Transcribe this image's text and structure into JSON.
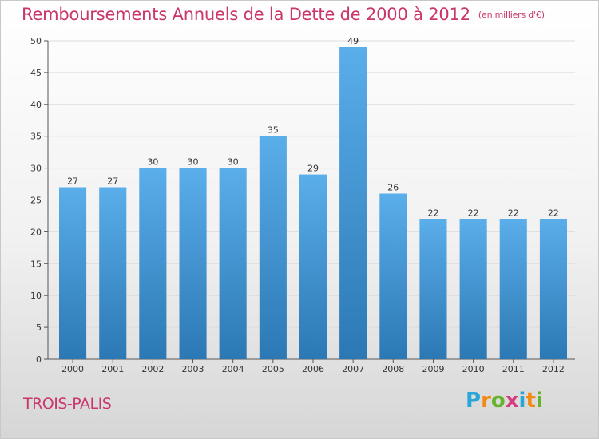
{
  "header": {
    "title": "Remboursements Annuels de la Dette de 2000 à 2012",
    "subtitle": "(en milliers d'€)"
  },
  "footer": {
    "location": "TROIS-PALIS",
    "logo": {
      "text": "Proxiti",
      "letters": [
        "P",
        "r",
        "o",
        "x",
        "i",
        "t",
        "i"
      ],
      "colors": [
        "#2aa6d6",
        "#f18b14",
        "#66b32e",
        "#d63d7e",
        "#2aa6d6",
        "#f18b14",
        "#66b32e"
      ]
    }
  },
  "chart_data": {
    "type": "bar",
    "title": "Remboursements Annuels de la Dette de 2000 à 2012",
    "subtitle": "(en milliers d'€)",
    "xlabel": "",
    "ylabel": "",
    "categories": [
      "2000",
      "2001",
      "2002",
      "2003",
      "2004",
      "2005",
      "2006",
      "2007",
      "2008",
      "2009",
      "2010",
      "2011",
      "2012"
    ],
    "values": [
      27,
      27,
      30,
      30,
      30,
      35,
      29,
      49,
      26,
      22,
      22,
      22,
      22
    ],
    "ylim": [
      0,
      50
    ],
    "yticks": [
      0,
      5,
      10,
      15,
      20,
      25,
      30,
      35,
      40,
      45,
      50
    ],
    "grid": true,
    "colors": {
      "bar_top": "#5aaeea",
      "bar_bottom": "#2b78b4",
      "title": "#c9366b"
    }
  }
}
